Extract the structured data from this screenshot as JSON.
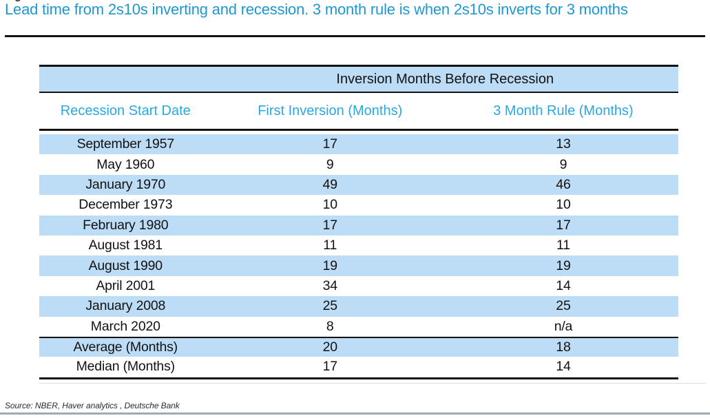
{
  "figure_fragment": "Figure",
  "title": "Lead time from 2s10s inverting and recession. 3 month rule is when 2s10s inverts for 3 months",
  "table": {
    "banner": "Inversion Months Before Recession",
    "columns": [
      "Recession Start Date",
      "First Inversion (Months)",
      "3 Month Rule (Months)"
    ],
    "rows": [
      {
        "date": "September 1957",
        "first_inversion": "17",
        "three_month_rule": "13"
      },
      {
        "date": "May 1960",
        "first_inversion": "9",
        "three_month_rule": "9"
      },
      {
        "date": "January 1970",
        "first_inversion": "49",
        "three_month_rule": "46"
      },
      {
        "date": "December 1973",
        "first_inversion": "10",
        "three_month_rule": "10"
      },
      {
        "date": "February 1980",
        "first_inversion": "17",
        "three_month_rule": "17"
      },
      {
        "date": "August 1981",
        "first_inversion": "11",
        "three_month_rule": "11"
      },
      {
        "date": "August 1990",
        "first_inversion": "19",
        "three_month_rule": "19"
      },
      {
        "date": "April 2001",
        "first_inversion": "34",
        "three_month_rule": "14"
      },
      {
        "date": "January 2008",
        "first_inversion": "25",
        "three_month_rule": "25"
      },
      {
        "date": "March 2020",
        "first_inversion": "8",
        "three_month_rule": "n/a"
      },
      {
        "date": "Average (Months)",
        "first_inversion": "20",
        "three_month_rule": "18"
      },
      {
        "date": "Median (Months)",
        "first_inversion": "17",
        "three_month_rule": "14"
      }
    ]
  },
  "source": "Source: NBER, Haver analytics , Deutsche Bank",
  "colors": {
    "title_cyan": "#1E98D1",
    "header_cyan": "#29A8E1",
    "row_blue": "#BDDCF5",
    "border_black": "#121212",
    "bottom_rule_gray": "#9FABB4"
  }
}
